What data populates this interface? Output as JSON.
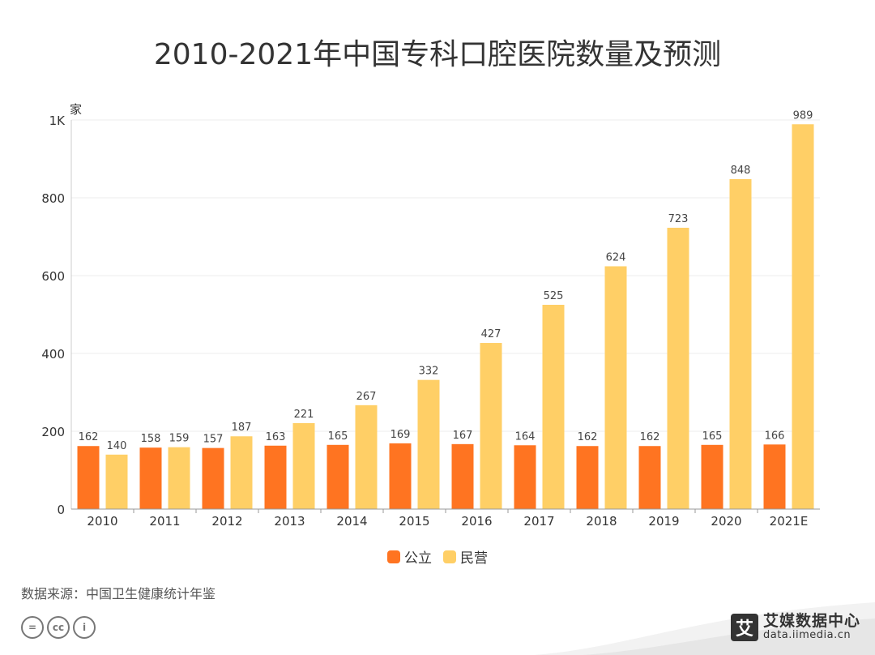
{
  "title": "2010-2021年中国专科口腔医院数量及预测",
  "legend": {
    "public_label": "公立",
    "private_label": "民营"
  },
  "source": "数据来源：中国卫生健康统计年鉴",
  "brand": {
    "logo_glyph": "艾",
    "name": "艾媒数据中心",
    "url": "data.iimedia.cn"
  },
  "license_icons": [
    "=",
    "cc",
    "i"
  ],
  "colors": {
    "public": "#FF7421",
    "private": "#FFCF66",
    "grid": "#EEEEEE",
    "axis": "#999999"
  },
  "chart_data": {
    "type": "bar",
    "title": "2010-2021年中国专科口腔医院数量及预测",
    "ylabel": "家",
    "xlabel": "",
    "ylim": [
      0,
      1000
    ],
    "y_ticks": [
      0,
      200,
      400,
      600,
      800,
      1000
    ],
    "y_tick_labels": [
      "0",
      "200",
      "400",
      "600",
      "800",
      "1K"
    ],
    "categories": [
      "2010",
      "2011",
      "2012",
      "2013",
      "2014",
      "2015",
      "2016",
      "2017",
      "2018",
      "2019",
      "2020",
      "2021E"
    ],
    "series": [
      {
        "name": "公立",
        "values": [
          162,
          158,
          157,
          163,
          165,
          169,
          167,
          164,
          162,
          162,
          165,
          166
        ]
      },
      {
        "name": "民营",
        "values": [
          140,
          159,
          187,
          221,
          267,
          332,
          427,
          525,
          624,
          723,
          848,
          989
        ]
      }
    ],
    "legend_position": "bottom"
  }
}
